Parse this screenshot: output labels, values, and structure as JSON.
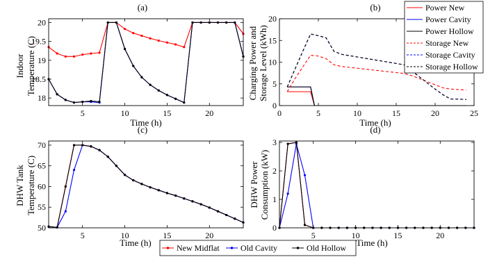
{
  "chart_data": [
    {
      "id": "a",
      "type": "line",
      "title": "(a)",
      "xlabel": "Time (h)",
      "ylabel": [
        "Indoor",
        "Temperature (C)"
      ],
      "xlim": [
        1,
        24
      ],
      "ylim": [
        17.8,
        20.1
      ],
      "xticks": [
        5,
        10,
        15,
        20
      ],
      "yticks": [
        18,
        18.5,
        19,
        19.5,
        20
      ],
      "ytick_labels": [
        "18",
        "18.5",
        "19",
        "19.5",
        "20"
      ],
      "grid": false,
      "series": [
        {
          "name": "New Midflat",
          "color": "#ff0000",
          "marker": true,
          "x": [
            1,
            2,
            3,
            4,
            5,
            6,
            7,
            8,
            9,
            10,
            11,
            12,
            13,
            14,
            15,
            16,
            17,
            18,
            19,
            20,
            21,
            22,
            23,
            24
          ],
          "y": [
            19.35,
            19.18,
            19.1,
            19.1,
            19.15,
            19.18,
            19.2,
            20.0,
            20.0,
            19.83,
            19.72,
            19.65,
            19.58,
            19.52,
            19.47,
            19.42,
            19.35,
            20.0,
            20.0,
            20.0,
            20.0,
            20.0,
            20.0,
            19.7
          ]
        },
        {
          "name": "Old Cavity",
          "color": "#0000ff",
          "marker": true,
          "x": [
            1,
            2,
            3,
            4,
            5,
            6,
            7,
            8,
            9,
            10,
            11,
            12,
            13,
            14,
            15,
            16,
            17,
            18,
            19,
            20,
            21,
            22,
            23,
            24
          ],
          "y": [
            18.5,
            18.1,
            17.95,
            17.88,
            17.9,
            17.9,
            17.88,
            20.0,
            20.0,
            19.3,
            18.85,
            18.55,
            18.35,
            18.2,
            18.08,
            17.98,
            17.88,
            20.0,
            20.0,
            20.0,
            20.0,
            20.0,
            20.0,
            19.1
          ]
        },
        {
          "name": "Old Hollow",
          "color": "#000000",
          "marker": true,
          "x": [
            1,
            2,
            3,
            4,
            5,
            6,
            7,
            8,
            9,
            10,
            11,
            12,
            13,
            14,
            15,
            16,
            17,
            18,
            19,
            20,
            21,
            22,
            23,
            24
          ],
          "y": [
            18.5,
            18.1,
            17.95,
            17.88,
            17.9,
            17.92,
            17.9,
            20.0,
            20.0,
            19.3,
            18.85,
            18.55,
            18.35,
            18.2,
            18.08,
            17.98,
            17.88,
            20.0,
            20.0,
            20.0,
            20.0,
            20.0,
            20.0,
            19.1
          ]
        }
      ]
    },
    {
      "id": "b",
      "type": "line",
      "title": "(b)",
      "xlabel": "Time (h)",
      "ylabel": [
        "Charging Power and",
        "Storage Level (kWh)"
      ],
      "xlim": [
        0,
        25
      ],
      "ylim": [
        0,
        20
      ],
      "xticks": [
        0,
        5,
        10,
        15,
        20,
        25
      ],
      "yticks": [
        0,
        5,
        10,
        15,
        20
      ],
      "ytick_labels": [
        "0",
        "5",
        "10",
        "15",
        "20"
      ],
      "grid": false,
      "legend": "top-right",
      "series": [
        {
          "name": "Power New",
          "color": "#ff0000",
          "dash": false,
          "x": [
            1,
            2,
            3,
            4,
            4.5,
            5,
            6,
            7,
            8,
            9,
            10,
            11,
            12,
            13,
            14,
            15,
            16,
            17,
            18,
            19,
            20,
            21,
            22,
            23,
            24
          ],
          "y": [
            3.2,
            3.2,
            3.2,
            3.2,
            0,
            0,
            0,
            0,
            0,
            0,
            0,
            0,
            0,
            0,
            0,
            0,
            0,
            0,
            0,
            0,
            0,
            0,
            0,
            0,
            0
          ]
        },
        {
          "name": "Power Cavity",
          "color": "#0000ff",
          "dash": false,
          "x": [
            1,
            2,
            3,
            4,
            4.5,
            5,
            6,
            7,
            8,
            9,
            10,
            11,
            12,
            13,
            14,
            15,
            16,
            17,
            18,
            19,
            20,
            21,
            22,
            23,
            24
          ],
          "y": [
            4.3,
            4.3,
            4.3,
            4.3,
            0,
            0,
            0,
            0,
            0,
            0,
            0,
            0,
            0,
            0,
            0,
            0,
            0,
            0,
            0,
            0,
            0,
            0,
            0,
            0,
            0
          ]
        },
        {
          "name": "Power Hollow",
          "color": "#000000",
          "dash": false,
          "x": [
            1,
            2,
            3,
            4,
            4.5,
            5,
            6,
            7,
            8,
            9,
            10,
            11,
            12,
            13,
            14,
            15,
            16,
            17,
            18,
            19,
            20,
            21,
            22,
            23,
            24
          ],
          "y": [
            4.3,
            4.3,
            4.3,
            4.3,
            0,
            0,
            0,
            0,
            0,
            0,
            0,
            0,
            0,
            0,
            0,
            0,
            0,
            0,
            0,
            0,
            0,
            0,
            0,
            0,
            0
          ]
        },
        {
          "name": "Storage New",
          "color": "#ff0000",
          "dash": true,
          "x": [
            1,
            2,
            3,
            4,
            5,
            6,
            7,
            8,
            9,
            10,
            11,
            12,
            13,
            14,
            15,
            16,
            17,
            18,
            19,
            20,
            21,
            22,
            23,
            24
          ],
          "y": [
            3.2,
            6.2,
            8.9,
            11.6,
            11.4,
            10.8,
            9.4,
            9.0,
            8.8,
            8.6,
            8.4,
            8.2,
            8.0,
            7.8,
            7.6,
            7.4,
            6.9,
            6.2,
            5.5,
            4.8,
            4.1,
            3.8,
            3.7,
            3.6
          ]
        },
        {
          "name": "Storage Cavity",
          "color": "#0000ff",
          "dash": true,
          "x": [
            1,
            2,
            3,
            4,
            5,
            6,
            7,
            8,
            9,
            10,
            11,
            12,
            13,
            14,
            15,
            16,
            17,
            18,
            19,
            20,
            21,
            22,
            23,
            24
          ],
          "y": [
            4.3,
            8.4,
            12.5,
            16.5,
            16.1,
            15.6,
            12.5,
            11.8,
            11.5,
            11.2,
            10.9,
            10.6,
            10.3,
            10.0,
            9.7,
            9.4,
            8.0,
            6.6,
            5.2,
            3.8,
            2.5,
            1.5,
            1.5,
            1.4
          ]
        },
        {
          "name": "Storage Hollow",
          "color": "#000000",
          "dash": true,
          "x": [
            1,
            2,
            3,
            4,
            5,
            6,
            7,
            8,
            9,
            10,
            11,
            12,
            13,
            14,
            15,
            16,
            17,
            18,
            19,
            20,
            21,
            22,
            23,
            24
          ],
          "y": [
            4.3,
            8.4,
            12.5,
            16.5,
            16.1,
            15.6,
            12.5,
            11.8,
            11.5,
            11.2,
            10.9,
            10.6,
            10.3,
            10.0,
            9.7,
            9.4,
            8.0,
            6.6,
            5.2,
            3.8,
            2.5,
            1.5,
            1.5,
            1.4
          ]
        }
      ]
    },
    {
      "id": "c",
      "type": "line",
      "title": "(c)",
      "xlabel": "Time (h)",
      "ylabel": [
        "DHW Tank",
        "Temperature (C)"
      ],
      "xlim": [
        1,
        24
      ],
      "ylim": [
        50,
        71
      ],
      "xticks": [
        5,
        10,
        15,
        20
      ],
      "yticks": [
        50,
        55,
        60,
        65,
        70
      ],
      "ytick_labels": [
        "50",
        "55",
        "60",
        "65",
        "70"
      ],
      "grid": false,
      "series": [
        {
          "name": "New Midflat",
          "color": "#ff0000",
          "marker": true,
          "x": [
            1,
            2,
            3,
            4,
            5,
            6,
            7,
            8,
            9,
            10,
            11,
            12,
            13,
            14,
            15,
            16,
            17,
            18,
            19,
            20,
            21,
            22,
            23,
            24
          ],
          "y": [
            50.3,
            50.1,
            60.0,
            70.0,
            70.0,
            69.7,
            68.8,
            67.2,
            65.0,
            62.8,
            61.5,
            60.6,
            59.8,
            59.1,
            58.4,
            57.8,
            57.1,
            56.4,
            55.7,
            54.9,
            54.0,
            53.1,
            52.2,
            51.3
          ]
        },
        {
          "name": "Old Cavity",
          "color": "#0000ff",
          "marker": true,
          "x": [
            1,
            2,
            3,
            4,
            5,
            6,
            7,
            8,
            9,
            10,
            11,
            12,
            13,
            14,
            15,
            16,
            17,
            18,
            19,
            20,
            21,
            22,
            23,
            24
          ],
          "y": [
            50.3,
            50.1,
            54.0,
            64.0,
            70.0,
            69.7,
            68.8,
            67.2,
            65.0,
            62.8,
            61.5,
            60.6,
            59.8,
            59.1,
            58.4,
            57.8,
            57.1,
            56.4,
            55.7,
            54.9,
            54.0,
            53.1,
            52.2,
            51.3
          ]
        },
        {
          "name": "Old Hollow",
          "color": "#000000",
          "marker": true,
          "x": [
            1,
            2,
            3,
            4,
            5,
            6,
            7,
            8,
            9,
            10,
            11,
            12,
            13,
            14,
            15,
            16,
            17,
            18,
            19,
            20,
            21,
            22,
            23,
            24
          ],
          "y": [
            50.3,
            50.1,
            60.0,
            70.0,
            70.0,
            69.7,
            68.8,
            67.2,
            65.0,
            62.8,
            61.5,
            60.6,
            59.8,
            59.1,
            58.4,
            57.8,
            57.1,
            56.4,
            55.7,
            54.9,
            54.0,
            53.1,
            52.2,
            51.3
          ]
        }
      ]
    },
    {
      "id": "d",
      "type": "line",
      "title": "(d)",
      "xlabel": "Time (h)",
      "ylabel": [
        "DHW Power",
        "Consumption (kW)"
      ],
      "xlim": [
        1,
        24
      ],
      "ylim": [
        0,
        3.05
      ],
      "xticks": [
        5,
        10,
        15,
        20
      ],
      "yticks": [
        0,
        1,
        2,
        3
      ],
      "ytick_labels": [
        "0",
        "1",
        "2",
        "3"
      ],
      "grid": false,
      "series": [
        {
          "name": "New Midflat",
          "color": "#ff0000",
          "marker": true,
          "x": [
            1,
            2,
            3,
            4,
            5,
            6,
            7,
            8,
            9,
            10,
            11,
            12,
            13,
            14,
            15,
            16,
            17,
            18,
            19,
            20,
            21,
            22,
            23,
            24
          ],
          "y": [
            0,
            2.95,
            3.0,
            0.1,
            0,
            0,
            0,
            0,
            0,
            0,
            0,
            0,
            0,
            0,
            0,
            0,
            0,
            0,
            0,
            0,
            0,
            0,
            0,
            0
          ]
        },
        {
          "name": "Old Cavity",
          "color": "#0000ff",
          "marker": true,
          "x": [
            1,
            2,
            3,
            4,
            5,
            6,
            7,
            8,
            9,
            10,
            11,
            12,
            13,
            14,
            15,
            16,
            17,
            18,
            19,
            20,
            21,
            22,
            23,
            24
          ],
          "y": [
            0,
            1.2,
            2.95,
            1.85,
            0,
            0,
            0,
            0,
            0,
            0,
            0,
            0,
            0,
            0,
            0,
            0,
            0,
            0,
            0,
            0,
            0,
            0,
            0,
            0
          ]
        },
        {
          "name": "Old Hollow",
          "color": "#000000",
          "marker": true,
          "x": [
            1,
            2,
            3,
            4,
            5,
            6,
            7,
            8,
            9,
            10,
            11,
            12,
            13,
            14,
            15,
            16,
            17,
            18,
            19,
            20,
            21,
            22,
            23,
            24
          ],
          "y": [
            0,
            2.95,
            3.0,
            0.1,
            0,
            0,
            0,
            0,
            0,
            0,
            0,
            0,
            0,
            0,
            0,
            0,
            0,
            0,
            0,
            0,
            0,
            0,
            0,
            0
          ]
        }
      ]
    }
  ],
  "bottom_legend": {
    "entries": [
      {
        "name": "New Midflat",
        "color": "#ff0000"
      },
      {
        "name": "Old Cavity",
        "color": "#0000ff"
      },
      {
        "name": "Old Hollow",
        "color": "#000000"
      }
    ]
  }
}
